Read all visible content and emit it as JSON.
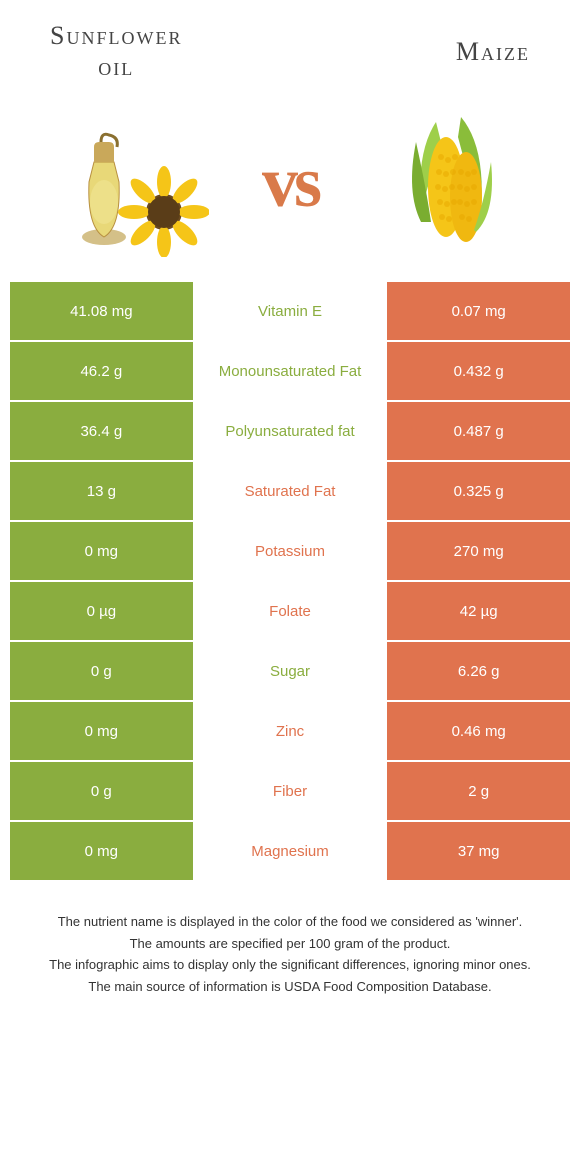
{
  "header": {
    "left_title_line1": "Sunflower",
    "left_title_line2": "oil",
    "right_title": "Maize",
    "vs_text": "vs"
  },
  "colors": {
    "green": "#8aad3f",
    "orange": "#e0734e",
    "white": "#ffffff"
  },
  "rows": [
    {
      "left": "41.08 mg",
      "label": "Vitamin E",
      "right": "0.07 mg",
      "winner": "left"
    },
    {
      "left": "46.2 g",
      "label": "Monounsaturated Fat",
      "right": "0.432 g",
      "winner": "left"
    },
    {
      "left": "36.4 g",
      "label": "Polyunsaturated fat",
      "right": "0.487 g",
      "winner": "left"
    },
    {
      "left": "13 g",
      "label": "Saturated Fat",
      "right": "0.325 g",
      "winner": "right"
    },
    {
      "left": "0 mg",
      "label": "Potassium",
      "right": "270 mg",
      "winner": "right"
    },
    {
      "left": "0 µg",
      "label": "Folate",
      "right": "42 µg",
      "winner": "right"
    },
    {
      "left": "0 g",
      "label": "Sugar",
      "right": "6.26 g",
      "winner": "left"
    },
    {
      "left": "0 mg",
      "label": "Zinc",
      "right": "0.46 mg",
      "winner": "right"
    },
    {
      "left": "0 g",
      "label": "Fiber",
      "right": "2 g",
      "winner": "right"
    },
    {
      "left": "0 mg",
      "label": "Magnesium",
      "right": "37 mg",
      "winner": "right"
    }
  ],
  "footer": {
    "line1": "The nutrient name is displayed in the color of the food we considered as 'winner'.",
    "line2": "The amounts are specified per 100 gram of the product.",
    "line3": "The infographic aims to display only the significant differences, ignoring minor ones.",
    "line4": "The main source of information is USDA Food Composition Database."
  }
}
